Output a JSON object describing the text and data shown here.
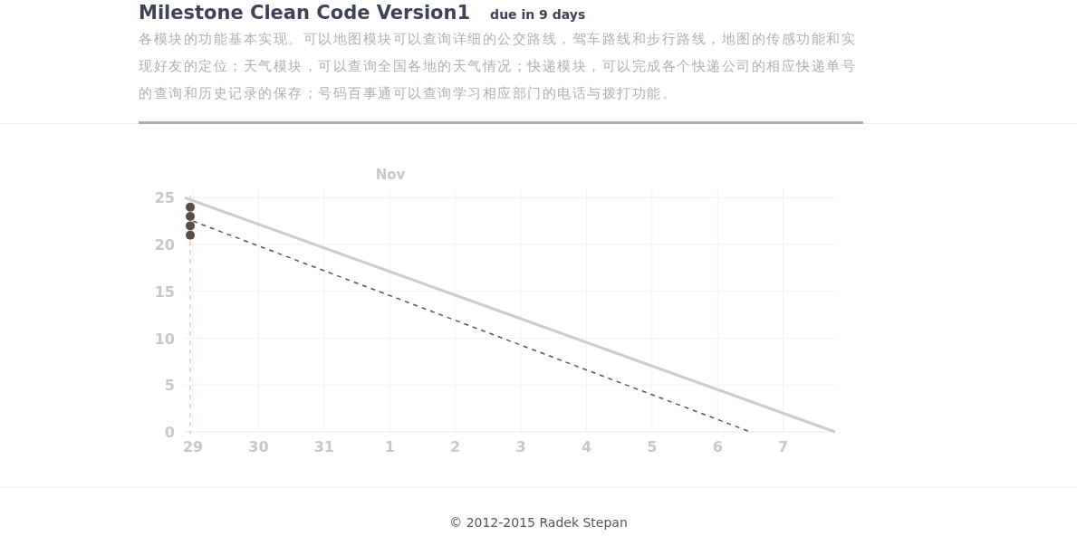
{
  "chart_data": {
    "type": "line",
    "title": "Milestone Clean Code Version1",
    "subtitle": "due in 9 days",
    "annotations": [
      "各模块的功能基本实现。可以地图模块可以查询详细的公交路线，驾车路线和步行路线，地图的传感功能和实现好友的定位；天气模块，可以查询全国各地的天气情况；快递模块，可以完成各个快递公司的相应快递单号的查询和历史记录的保存；号码百事通可以查询学习相应部门的电话与拨打功能。",
      "© 2012-2015 Radek Stepan",
      "Nov"
    ],
    "series": [
      {
        "color": "#cccccc",
        "line_style": "solid",
        "marker": "none",
        "x": [
          "--10-28T21:00",
          "--11-07T19:00"
        ],
        "values": [
          25,
          0
        ]
      },
      {
        "color": "#555555",
        "line_style": "dashed",
        "marker": "none",
        "x": [
          "--10-29",
          "--11-06T12:00"
        ],
        "values": [
          22.5,
          0
        ]
      },
      {
        "type": "scatter",
        "color": "#5a4c42",
        "marker": "circle",
        "x": [
          "--10-28T23:00",
          "--10-28T23:00",
          "--10-28T23:00",
          "--10-28T23:00"
        ],
        "values": [
          24,
          23,
          22,
          21
        ]
      }
    ],
    "ref_lines": [
      {
        "axis": "x",
        "value": "--10-28T23:00",
        "color": "#e0a8b0",
        "line_style": "dashed"
      }
    ],
    "xlim": [
      "--10-28T21:00",
      "--11-07T19:00"
    ],
    "ylim": [
      0,
      26
    ],
    "xticks": [
      {
        "value": "--10-29",
        "label": "29"
      },
      {
        "value": "--10-30",
        "label": "30"
      },
      {
        "value": "--10-31",
        "label": "31"
      },
      {
        "value": "--11-01",
        "label": "1"
      },
      {
        "value": "--11-02",
        "label": "2"
      },
      {
        "value": "--11-03",
        "label": "3"
      },
      {
        "value": "--11-04",
        "label": "4"
      },
      {
        "value": "--11-05",
        "label": "5"
      },
      {
        "value": "--11-06",
        "label": "6"
      },
      {
        "value": "--11-07",
        "label": "7"
      }
    ],
    "yticks": [
      0,
      5,
      10,
      15,
      20,
      25
    ],
    "grid": true
  }
}
